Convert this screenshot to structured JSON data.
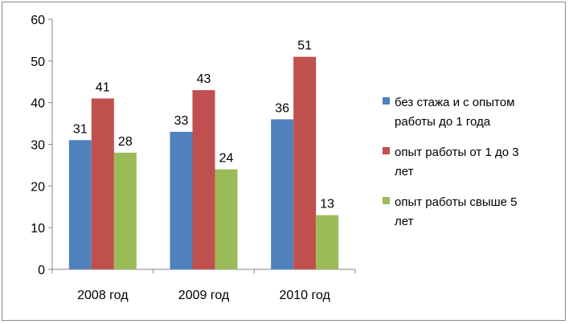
{
  "chart_data": {
    "type": "bar",
    "categories": [
      "2008 год",
      "2009 год",
      "2010 год"
    ],
    "series": [
      {
        "name": "без стажа и с опытом работы до 1 года",
        "legend_lines": [
          "без стажа и с опытом",
          "работы до 1 года"
        ],
        "values": [
          31,
          33,
          36
        ],
        "color": "#4f81bd"
      },
      {
        "name": "опыт работы от 1 до 3 лет",
        "legend_lines": [
          "опыт работы от 1 до 3",
          "лет"
        ],
        "values": [
          41,
          43,
          51
        ],
        "color": "#c0504d"
      },
      {
        "name": "опыт работы свыше 5 лет",
        "legend_lines": [
          "опыт работы свыше 5",
          "лет"
        ],
        "values": [
          28,
          24,
          13
        ],
        "color": "#9bbb59"
      }
    ],
    "yticks": [
      0,
      10,
      20,
      30,
      40,
      50,
      60
    ],
    "ylim": [
      0,
      60
    ],
    "grid": false,
    "legend_position": "right"
  }
}
